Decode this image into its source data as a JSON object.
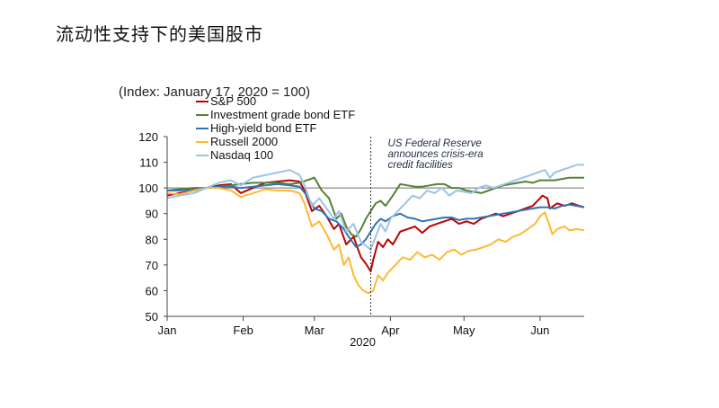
{
  "slide": {
    "title": "流动性支持下的美国股市"
  },
  "chart_data": {
    "type": "line",
    "subtitle": "(Index: January 17, 2020 = 100)",
    "year_label": "2020",
    "x_ticks": [
      "Jan",
      "Feb",
      "Mar",
      "Apr",
      "May",
      "Jun"
    ],
    "x_tick_days": [
      1,
      32,
      61,
      92,
      122,
      153
    ],
    "xlim": [
      1,
      171
    ],
    "ylim": [
      50,
      120
    ],
    "y_ticks": [
      120,
      110,
      100,
      90,
      80,
      70,
      60,
      50
    ],
    "reference_y": 100,
    "event": {
      "day": 84,
      "text": [
        "US Federal Reserve",
        "announces crisis-era",
        "credit facilities"
      ]
    },
    "legend_position": "top-left",
    "series": [
      {
        "name": "S&P 500",
        "color": "#c00000",
        "points": [
          [
            1,
            97
          ],
          [
            6,
            98
          ],
          [
            12,
            99
          ],
          [
            17,
            100
          ],
          [
            22,
            101
          ],
          [
            27,
            101.5
          ],
          [
            31,
            98
          ],
          [
            36,
            100
          ],
          [
            41,
            102
          ],
          [
            46,
            102.5
          ],
          [
            51,
            103
          ],
          [
            55,
            102.5
          ],
          [
            57,
            99
          ],
          [
            60,
            91
          ],
          [
            63,
            93
          ],
          [
            66,
            89
          ],
          [
            69,
            84
          ],
          [
            71,
            86
          ],
          [
            74,
            78
          ],
          [
            77,
            81
          ],
          [
            80,
            73
          ],
          [
            82,
            70.5
          ],
          [
            84,
            67.5
          ],
          [
            85,
            72
          ],
          [
            87,
            79
          ],
          [
            89,
            77
          ],
          [
            91,
            80
          ],
          [
            93,
            78
          ],
          [
            96,
            83
          ],
          [
            99,
            84
          ],
          [
            102,
            85
          ],
          [
            105,
            82.5
          ],
          [
            108,
            85
          ],
          [
            111,
            86
          ],
          [
            114,
            87
          ],
          [
            117,
            88
          ],
          [
            120,
            86
          ],
          [
            123,
            87
          ],
          [
            126,
            86
          ],
          [
            129,
            88
          ],
          [
            132,
            89
          ],
          [
            135,
            90
          ],
          [
            138,
            89
          ],
          [
            141,
            90
          ],
          [
            144,
            91
          ],
          [
            147,
            92
          ],
          [
            150,
            93
          ],
          [
            152,
            95
          ],
          [
            154,
            97
          ],
          [
            156,
            96
          ],
          [
            157,
            92
          ],
          [
            160,
            94
          ],
          [
            163,
            93
          ],
          [
            166,
            94
          ],
          [
            169,
            93
          ],
          [
            171,
            92.5
          ]
        ]
      },
      {
        "name": "Investment grade bond ETF",
        "color": "#548235",
        "points": [
          [
            1,
            99
          ],
          [
            6,
            99.5
          ],
          [
            12,
            100
          ],
          [
            17,
            100
          ],
          [
            22,
            100.5
          ],
          [
            27,
            101
          ],
          [
            31,
            101.5
          ],
          [
            36,
            102
          ],
          [
            41,
            102
          ],
          [
            46,
            102
          ],
          [
            51,
            101.5
          ],
          [
            55,
            102
          ],
          [
            58,
            103
          ],
          [
            61,
            104
          ],
          [
            64,
            99
          ],
          [
            67,
            96
          ],
          [
            70,
            88
          ],
          [
            72,
            90
          ],
          [
            74,
            85
          ],
          [
            76,
            82
          ],
          [
            78,
            81
          ],
          [
            80,
            84
          ],
          [
            82,
            88
          ],
          [
            84,
            91
          ],
          [
            86,
            94
          ],
          [
            88,
            95
          ],
          [
            90,
            93
          ],
          [
            93,
            97
          ],
          [
            96,
            101.5
          ],
          [
            99,
            101
          ],
          [
            102,
            100.5
          ],
          [
            105,
            100.5
          ],
          [
            108,
            101
          ],
          [
            111,
            101.5
          ],
          [
            114,
            101.5
          ],
          [
            117,
            100
          ],
          [
            120,
            100
          ],
          [
            123,
            99
          ],
          [
            126,
            98.5
          ],
          [
            129,
            98
          ],
          [
            132,
            99
          ],
          [
            135,
            100
          ],
          [
            138,
            101
          ],
          [
            141,
            101.5
          ],
          [
            144,
            102
          ],
          [
            147,
            102.5
          ],
          [
            150,
            102
          ],
          [
            153,
            103
          ],
          [
            156,
            103
          ],
          [
            159,
            103
          ],
          [
            162,
            103.5
          ],
          [
            165,
            104
          ],
          [
            168,
            104
          ],
          [
            171,
            104
          ]
        ]
      },
      {
        "name": "High-yield bond ETF",
        "color": "#2e75b6",
        "points": [
          [
            1,
            99
          ],
          [
            6,
            99
          ],
          [
            12,
            99.5
          ],
          [
            17,
            100
          ],
          [
            22,
            100.5
          ],
          [
            27,
            100.5
          ],
          [
            31,
            100
          ],
          [
            36,
            100.5
          ],
          [
            41,
            101
          ],
          [
            46,
            101.5
          ],
          [
            51,
            101
          ],
          [
            55,
            100.5
          ],
          [
            58,
            97
          ],
          [
            61,
            92
          ],
          [
            64,
            91
          ],
          [
            67,
            88
          ],
          [
            70,
            87
          ],
          [
            73,
            84
          ],
          [
            75,
            81
          ],
          [
            78,
            77
          ],
          [
            80,
            78
          ],
          [
            82,
            80
          ],
          [
            84,
            83
          ],
          [
            86,
            86
          ],
          [
            88,
            88
          ],
          [
            90,
            87
          ],
          [
            93,
            89
          ],
          [
            96,
            90
          ],
          [
            99,
            88.5
          ],
          [
            102,
            88
          ],
          [
            105,
            87
          ],
          [
            108,
            87.5
          ],
          [
            111,
            88
          ],
          [
            114,
            88.5
          ],
          [
            117,
            88.5
          ],
          [
            120,
            87.5
          ],
          [
            123,
            88
          ],
          [
            126,
            88
          ],
          [
            129,
            88.5
          ],
          [
            132,
            89
          ],
          [
            135,
            89.5
          ],
          [
            138,
            90
          ],
          [
            141,
            90.5
          ],
          [
            144,
            91
          ],
          [
            147,
            91.5
          ],
          [
            150,
            92
          ],
          [
            153,
            92.5
          ],
          [
            156,
            92.5
          ],
          [
            159,
            92
          ],
          [
            162,
            93
          ],
          [
            165,
            93.5
          ],
          [
            168,
            93
          ],
          [
            171,
            92.5
          ]
        ]
      },
      {
        "name": "Russell 2000",
        "color": "#ffb833",
        "points": [
          [
            1,
            98
          ],
          [
            6,
            97.5
          ],
          [
            12,
            99
          ],
          [
            17,
            100
          ],
          [
            22,
            100
          ],
          [
            27,
            99
          ],
          [
            31,
            96.5
          ],
          [
            36,
            98
          ],
          [
            41,
            99.5
          ],
          [
            46,
            99
          ],
          [
            51,
            99
          ],
          [
            55,
            98
          ],
          [
            57,
            94
          ],
          [
            60,
            85
          ],
          [
            63,
            87
          ],
          [
            66,
            82
          ],
          [
            69,
            76
          ],
          [
            71,
            78
          ],
          [
            73,
            70
          ],
          [
            75,
            73
          ],
          [
            77,
            66
          ],
          [
            79,
            62
          ],
          [
            81,
            60
          ],
          [
            83,
            59
          ],
          [
            85,
            60
          ],
          [
            87,
            66
          ],
          [
            89,
            64
          ],
          [
            91,
            67
          ],
          [
            94,
            70
          ],
          [
            97,
            73
          ],
          [
            100,
            72
          ],
          [
            103,
            75
          ],
          [
            106,
            73
          ],
          [
            109,
            74
          ],
          [
            112,
            72
          ],
          [
            115,
            75
          ],
          [
            118,
            76
          ],
          [
            121,
            74
          ],
          [
            124,
            75.5
          ],
          [
            127,
            76
          ],
          [
            130,
            77
          ],
          [
            133,
            78
          ],
          [
            136,
            80
          ],
          [
            139,
            79
          ],
          [
            142,
            81
          ],
          [
            145,
            82
          ],
          [
            148,
            84
          ],
          [
            151,
            86
          ],
          [
            153,
            89
          ],
          [
            155,
            90.5
          ],
          [
            157,
            85
          ],
          [
            158,
            82
          ],
          [
            160,
            84
          ],
          [
            163,
            85
          ],
          [
            165,
            83.5
          ],
          [
            168,
            84
          ],
          [
            171,
            83.5
          ]
        ]
      },
      {
        "name": "Nasdaq 100",
        "color": "#9dc3e6",
        "points": [
          [
            1,
            96
          ],
          [
            6,
            97
          ],
          [
            12,
            98
          ],
          [
            17,
            100
          ],
          [
            22,
            102
          ],
          [
            27,
            103
          ],
          [
            31,
            101
          ],
          [
            36,
            104
          ],
          [
            41,
            105
          ],
          [
            46,
            106
          ],
          [
            51,
            107
          ],
          [
            55,
            105
          ],
          [
            57,
            101
          ],
          [
            60,
            93
          ],
          [
            63,
            96
          ],
          [
            66,
            92
          ],
          [
            69,
            88
          ],
          [
            71,
            91
          ],
          [
            74,
            83
          ],
          [
            77,
            86
          ],
          [
            80,
            79
          ],
          [
            82,
            77.5
          ],
          [
            84,
            76
          ],
          [
            86,
            81
          ],
          [
            88,
            86
          ],
          [
            90,
            83
          ],
          [
            92,
            88
          ],
          [
            95,
            91
          ],
          [
            98,
            94
          ],
          [
            101,
            97
          ],
          [
            104,
            96
          ],
          [
            107,
            99
          ],
          [
            110,
            98
          ],
          [
            113,
            100
          ],
          [
            116,
            97
          ],
          [
            119,
            99
          ],
          [
            122,
            98.5
          ],
          [
            125,
            98
          ],
          [
            128,
            100
          ],
          [
            131,
            101
          ],
          [
            134,
            100
          ],
          [
            137,
            101
          ],
          [
            140,
            102
          ],
          [
            143,
            103
          ],
          [
            146,
            104
          ],
          [
            149,
            105
          ],
          [
            152,
            106
          ],
          [
            155,
            107
          ],
          [
            157,
            104
          ],
          [
            159,
            106
          ],
          [
            162,
            107
          ],
          [
            165,
            108
          ],
          [
            168,
            109
          ],
          [
            171,
            109
          ]
        ]
      }
    ]
  }
}
